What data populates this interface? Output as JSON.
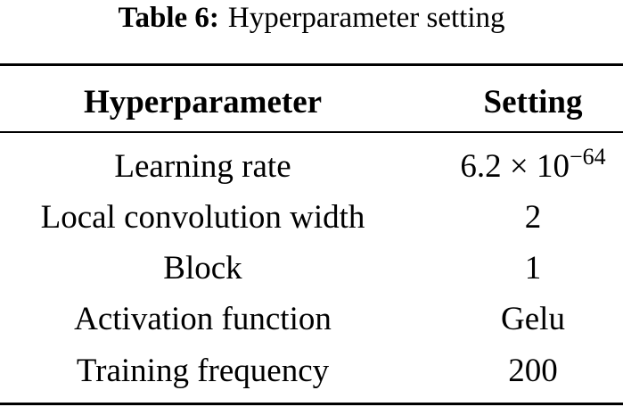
{
  "caption": {
    "label": "Table 6:",
    "text": "Hyperparameter setting"
  },
  "table": {
    "header": [
      "Hyperparameter",
      "Setting"
    ],
    "rows": [
      [
        "Learning rate",
        {
          "base": "6.2 × 10",
          "exponent": "−64"
        }
      ],
      [
        "Local convolution width",
        "2"
      ],
      [
        "Block",
        "1"
      ],
      [
        "Activation function",
        "Gelu"
      ],
      [
        "Training frequency",
        "200"
      ]
    ]
  }
}
